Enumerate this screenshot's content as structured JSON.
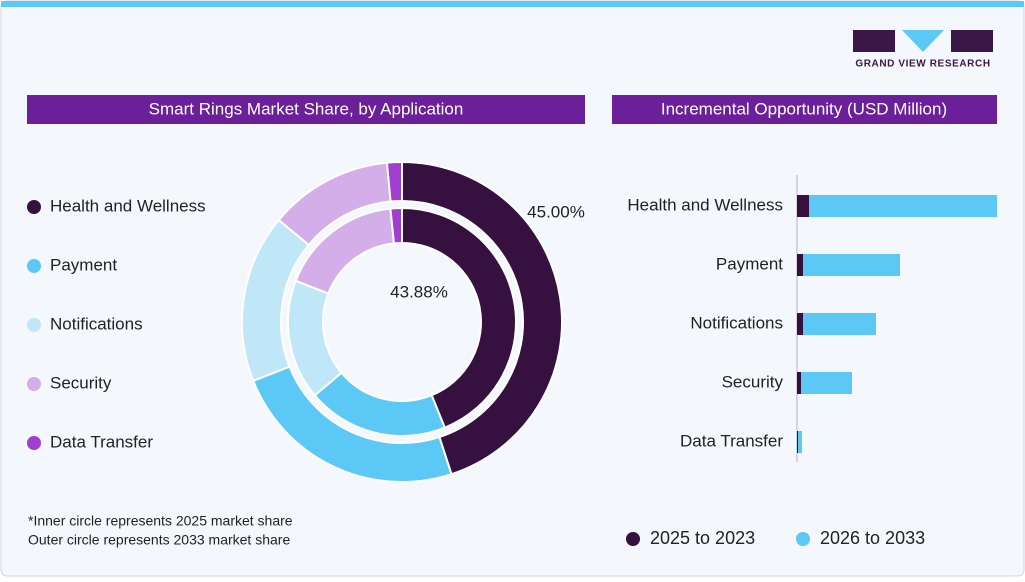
{
  "branding": {
    "name": "GRAND VIEW RESEARCH"
  },
  "chart_data": [
    {
      "type": "donut",
      "title": "Smart Rings Market Share, by Application",
      "categories": [
        "Health and Wellness",
        "Payment",
        "Notifications",
        "Security",
        "Data Transfer"
      ],
      "colors": [
        "#36103f",
        "#5bc8f5",
        "#bfe7f8",
        "#d4aee9",
        "#a03fcf"
      ],
      "series": [
        {
          "values": [
            43.88,
            20,
            17,
            17.5,
            1.62
          ],
          "value_labels": [
            "43.88%",
            null,
            null,
            null,
            null
          ]
        },
        {
          "values": [
            45.0,
            24,
            17,
            12.5,
            1.5
          ],
          "value_labels": [
            "45.00%",
            null,
            null,
            null,
            null
          ]
        }
      ],
      "footnote": [
        "*Inner circle represents 2025 market share",
        "Outer circle represents 2033 market share"
      ]
    },
    {
      "type": "bar",
      "title": "Incremental Opportunity (USD Million)",
      "orientation": "horizontal",
      "stacked": true,
      "categories": [
        "Health and Wellness",
        "Payment",
        "Notifications",
        "Security",
        "Data Transfer"
      ],
      "series": [
        {
          "name": "2025 to 2023",
          "color": "#36103f",
          "values": [
            12,
            6,
            6,
            4,
            1
          ]
        },
        {
          "name": "2026 to 2033",
          "color": "#5bc8f5",
          "values": [
            188,
            97,
            73,
            51,
            4
          ]
        }
      ]
    }
  ]
}
